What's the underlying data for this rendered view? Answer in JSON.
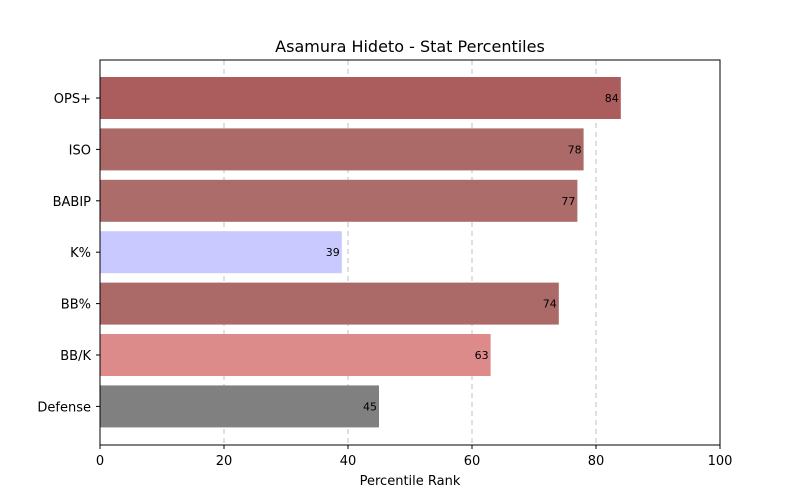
{
  "chart_data": {
    "type": "bar",
    "orientation": "horizontal",
    "title": "Asamura Hideto - Stat Percentiles",
    "xlabel": "Percentile Rank",
    "ylabel": "",
    "xlim": [
      0,
      100
    ],
    "xticks": [
      0,
      20,
      40,
      60,
      80,
      100
    ],
    "grid": "x-dashed",
    "categories": [
      "OPS+",
      "ISO",
      "BABIP",
      "K%",
      "BB%",
      "BB/K",
      "Defense"
    ],
    "values": [
      84,
      78,
      77,
      39,
      74,
      63,
      45
    ],
    "colors": [
      "#ab5c5c",
      "#ab6a67",
      "#ac6c6a",
      "#c9c9ff",
      "#ab6a67",
      "#dc8a8a",
      "#808080"
    ]
  }
}
